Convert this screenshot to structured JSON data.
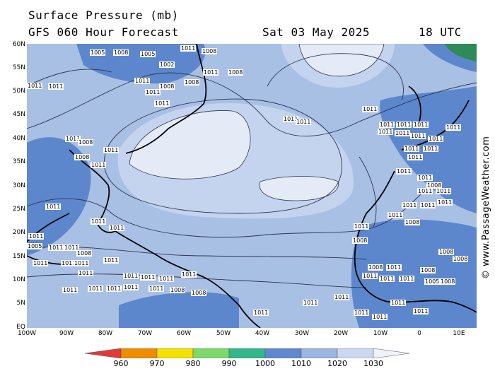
{
  "header": {
    "title": "Surface Pressure (mb)",
    "model": "GFS 060 Hour Forecast",
    "date": "Sat 03 May 2025",
    "utc": "18 UTC"
  },
  "lat_labels": [
    "60N",
    "55N",
    "50N",
    "45N",
    "40N",
    "35N",
    "30N",
    "25N",
    "20N",
    "15N",
    "10N",
    "5N",
    "EQ"
  ],
  "lon_labels": [
    "100W",
    "90W",
    "80W",
    "70W",
    "60W",
    "50W",
    "40W",
    "30W",
    "20W",
    "10W",
    "0",
    "10E"
  ],
  "copyright": "© www.PassageWeather.com",
  "scale": {
    "labels": [
      "960",
      "970",
      "980",
      "990",
      "1000",
      "1010",
      "1020",
      "1030"
    ],
    "colors": [
      "#e03a3a",
      "#f08c00",
      "#f5e000",
      "#7cd96b",
      "#32b88a",
      "#5f88cf",
      "#9bb6e0",
      "#cbd9f0",
      "#eef2fa"
    ]
  },
  "pressure_labels": [
    "1005",
    "1008",
    "1011",
    "1002"
  ],
  "colors": {
    "ocean_mid": "#a8c0e4",
    "ocean_high": "#c4d4ee",
    "high_center": "#e4ebf7",
    "low": "#5d87cc",
    "coast": "#000000",
    "isobar": "#2a3550"
  }
}
